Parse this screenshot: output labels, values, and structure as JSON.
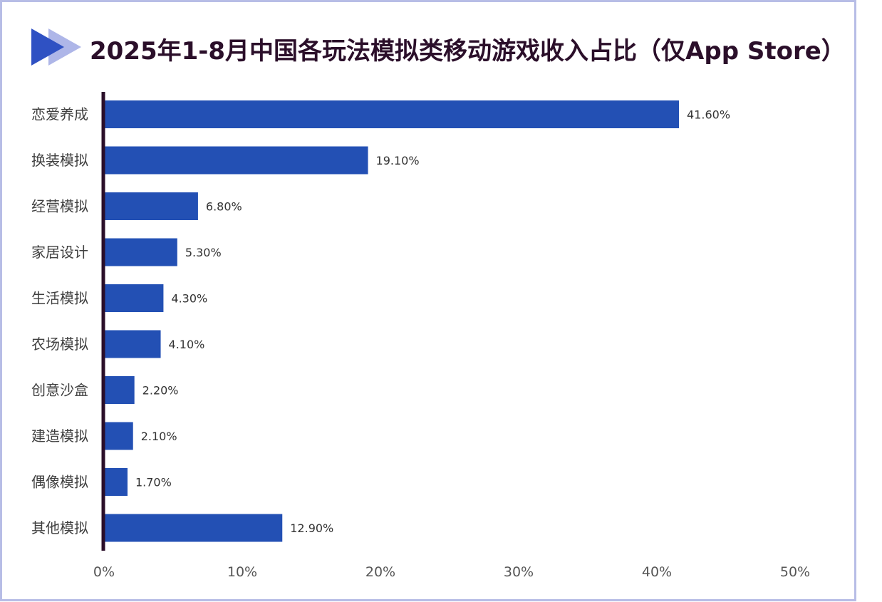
{
  "title": "2025年1-8月中国各玩法模拟类移动游戏收入占比（仅App Store）",
  "colors": {
    "bar": "#2350b4",
    "axis": "#2b0f2a",
    "title": "#2b0f2a",
    "frame": "#b7bde6",
    "icon_dark": "#2f51c3",
    "icon_light": "#aeb6e8"
  },
  "icons": {
    "title_marker": "double-triangle-arrow-icon"
  },
  "chart_data": {
    "type": "bar",
    "orientation": "horizontal",
    "title": "2025年1-8月中国各玩法模拟类移动游戏收入占比（仅App Store）",
    "categories": [
      "恋爱养成",
      "换装模拟",
      "经营模拟",
      "家居设计",
      "生活模拟",
      "农场模拟",
      "创意沙盒",
      "建造模拟",
      "偶像模拟",
      "其他模拟"
    ],
    "values": [
      41.6,
      19.1,
      6.8,
      5.3,
      4.3,
      4.1,
      2.2,
      2.1,
      1.7,
      12.9
    ],
    "value_labels": [
      "41.60%",
      "19.10%",
      "6.80%",
      "5.30%",
      "4.30%",
      "4.10%",
      "2.20%",
      "2.10%",
      "1.70%",
      "12.90%"
    ],
    "xlim": [
      0,
      50
    ],
    "x_ticks": [
      0,
      10,
      20,
      30,
      40,
      50
    ],
    "x_tick_labels": [
      "0%",
      "10%",
      "20%",
      "30%",
      "40%",
      "50%"
    ],
    "xlabel": "",
    "ylabel": "",
    "grid": false,
    "legend": "none"
  }
}
